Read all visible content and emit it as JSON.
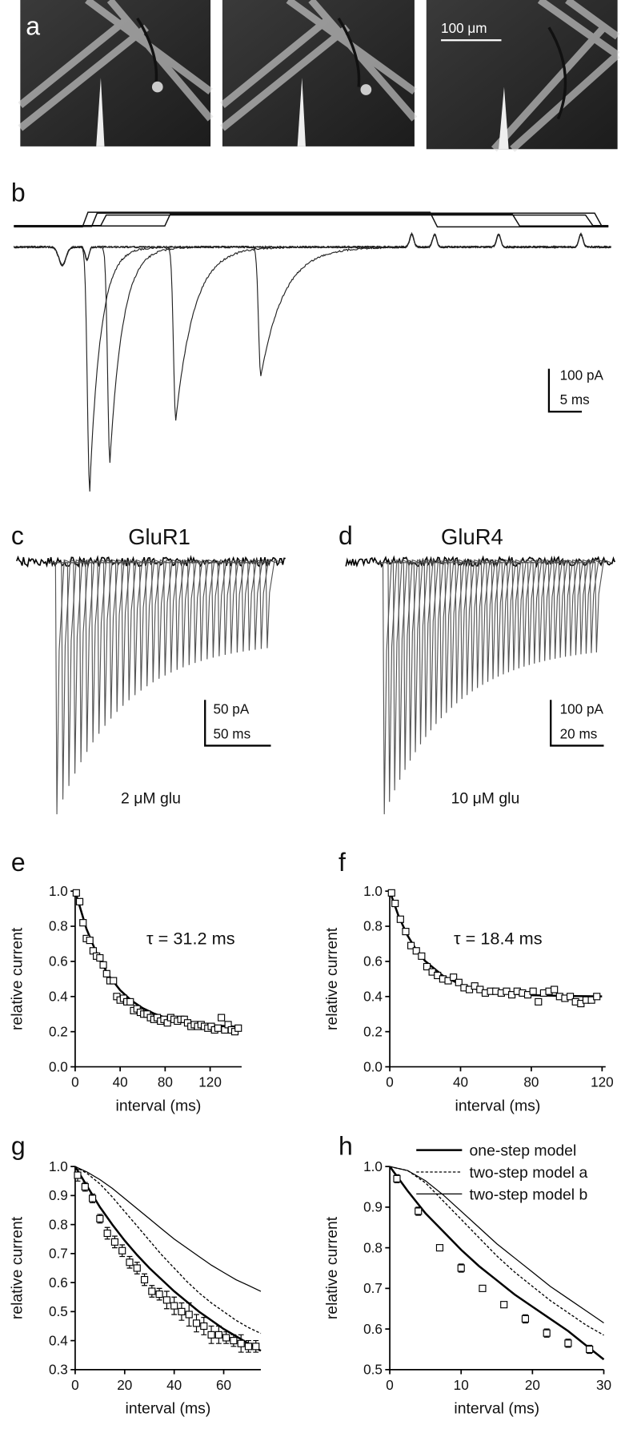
{
  "panels": {
    "a": {
      "label": "a",
      "scale_bar": "100 μm"
    },
    "b": {
      "label": "b",
      "scale_bars": [
        "100 pA",
        "5 ms"
      ]
    },
    "c": {
      "label": "c",
      "title": "GluR1",
      "scale_bars": [
        "50 pA",
        "50 ms"
      ],
      "note": "2 μM glu"
    },
    "d": {
      "label": "d",
      "title": "GluR4",
      "scale_bars": [
        "100 pA",
        "20 ms"
      ],
      "note": "10 μM glu"
    }
  },
  "chart_data": [
    {
      "type": "scatter",
      "label": "e",
      "annotation": "τ = 31.2 ms",
      "xlabel": "interval (ms)",
      "ylabel": "relative current",
      "xlim": [
        0,
        148
      ],
      "xticks": [
        0,
        40,
        80,
        120
      ],
      "ylim": [
        0,
        1
      ],
      "yticks": [
        {
          "value": 0,
          "label": "0.0"
        },
        0.2,
        0.4,
        0.6,
        0.8,
        {
          "value": 1,
          "label": "1.0"
        }
      ],
      "points": {
        "marker": "open-square",
        "x": [
          1,
          4,
          7,
          10,
          13,
          16,
          19,
          22,
          25,
          28,
          31,
          34,
          37,
          40,
          43,
          46,
          49,
          52,
          55,
          58,
          61,
          64,
          67,
          70,
          73,
          76,
          79,
          82,
          85,
          88,
          91,
          94,
          97,
          100,
          103,
          106,
          109,
          112,
          115,
          118,
          121,
          124,
          127,
          130,
          133,
          136,
          139,
          142,
          145
        ],
        "values": [
          0.99,
          0.94,
          0.82,
          0.73,
          0.72,
          0.66,
          0.63,
          0.62,
          0.58,
          0.53,
          0.49,
          0.49,
          0.4,
          0.38,
          0.39,
          0.37,
          0.37,
          0.32,
          0.33,
          0.31,
          0.3,
          0.3,
          0.28,
          0.27,
          0.28,
          0.26,
          0.27,
          0.25,
          0.28,
          0.27,
          0.26,
          0.27,
          0.27,
          0.25,
          0.23,
          0.24,
          0.23,
          0.24,
          0.23,
          0.22,
          0.23,
          0.21,
          0.22,
          0.28,
          0.21,
          0.24,
          0.21,
          0.2,
          0.22
        ]
      },
      "series": [
        {
          "style": "thick",
          "color": "#000000",
          "x": [
            0,
            10,
            20,
            30,
            40,
            50,
            60,
            70,
            80,
            90,
            100,
            120,
            140,
            148
          ],
          "values": [
            1.0,
            0.786,
            0.631,
            0.518,
            0.436,
            0.377,
            0.334,
            0.303,
            0.28,
            0.264,
            0.252,
            0.237,
            0.229,
            0.227
          ]
        }
      ]
    },
    {
      "type": "scatter",
      "label": "f",
      "annotation": "τ = 18.4 ms",
      "xlabel": "interval (ms)",
      "ylabel": "relative current",
      "xlim": [
        0,
        122
      ],
      "xticks": [
        0,
        40,
        80,
        120
      ],
      "ylim": [
        0,
        1
      ],
      "yticks": [
        {
          "value": 0,
          "label": "0.0"
        },
        0.2,
        0.4,
        0.6,
        0.8,
        {
          "value": 1,
          "label": "1.0"
        }
      ],
      "points": {
        "marker": "open-square",
        "x": [
          1,
          3,
          6,
          9,
          12,
          15,
          18,
          21,
          24,
          27,
          30,
          33,
          36,
          39,
          42,
          45,
          48,
          51,
          54,
          57,
          60,
          63,
          66,
          69,
          72,
          75,
          78,
          81,
          84,
          87,
          90,
          93,
          96,
          99,
          102,
          105,
          108,
          111,
          114,
          117
        ],
        "values": [
          0.99,
          0.93,
          0.84,
          0.77,
          0.69,
          0.66,
          0.63,
          0.57,
          0.54,
          0.52,
          0.5,
          0.49,
          0.51,
          0.48,
          0.45,
          0.44,
          0.46,
          0.44,
          0.42,
          0.43,
          0.43,
          0.42,
          0.43,
          0.41,
          0.43,
          0.42,
          0.41,
          0.43,
          0.37,
          0.42,
          0.43,
          0.44,
          0.4,
          0.39,
          0.4,
          0.37,
          0.36,
          0.38,
          0.38,
          0.4
        ]
      },
      "series": [
        {
          "style": "thick",
          "color": "#000000",
          "x": [
            0,
            5,
            10,
            15,
            20,
            30,
            40,
            50,
            60,
            80,
            100,
            120
          ],
          "values": [
            1.0,
            0.857,
            0.748,
            0.665,
            0.602,
            0.518,
            0.468,
            0.44,
            0.423,
            0.408,
            0.403,
            0.401
          ]
        }
      ]
    },
    {
      "type": "scatter",
      "label": "g",
      "xlabel": "interval (ms)",
      "ylabel": "relative current",
      "xlim": [
        0,
        75
      ],
      "xticks": [
        0,
        20,
        40,
        60
      ],
      "ylim": [
        0.3,
        1
      ],
      "yticks": [
        0.3,
        0.4,
        0.5,
        0.6,
        0.7,
        0.8,
        0.9,
        {
          "value": 1,
          "label": "1.0"
        }
      ],
      "points": {
        "marker": "open-square",
        "x": [
          1,
          4,
          7,
          10,
          13,
          16,
          19,
          22,
          25,
          28,
          31,
          34,
          37,
          40,
          43,
          46,
          49,
          52,
          55,
          58,
          61,
          64,
          67,
          70,
          73
        ],
        "values": [
          0.97,
          0.93,
          0.89,
          0.82,
          0.77,
          0.74,
          0.71,
          0.67,
          0.65,
          0.61,
          0.57,
          0.56,
          0.54,
          0.52,
          0.5,
          0.49,
          0.46,
          0.45,
          0.42,
          0.42,
          0.41,
          0.4,
          0.39,
          0.38,
          0.38
        ],
        "errors": [
          0.02,
          0.015,
          0.015,
          0.015,
          0.02,
          0.02,
          0.02,
          0.02,
          0.02,
          0.02,
          0.02,
          0.02,
          0.03,
          0.03,
          0.03,
          0.04,
          0.03,
          0.03,
          0.03,
          0.03,
          0.02,
          0.02,
          0.03,
          0.02,
          0.02
        ]
      },
      "series": [
        {
          "style": "thick",
          "color": "#000000",
          "x": [
            0,
            5,
            10,
            15,
            20,
            25,
            30,
            35,
            40,
            45,
            50,
            55,
            60,
            65,
            70,
            75
          ],
          "values": [
            1.0,
            0.93,
            0.86,
            0.8,
            0.745,
            0.695,
            0.65,
            0.61,
            0.57,
            0.535,
            0.5,
            0.47,
            0.44,
            0.415,
            0.39,
            0.365
          ]
        },
        {
          "style": "dashed",
          "color": "#000000",
          "x": [
            0,
            5,
            10,
            15,
            20,
            25,
            30,
            35,
            40,
            45,
            50,
            55,
            60,
            65,
            70,
            75
          ],
          "values": [
            1.0,
            0.975,
            0.94,
            0.895,
            0.845,
            0.795,
            0.745,
            0.695,
            0.65,
            0.605,
            0.565,
            0.53,
            0.5,
            0.47,
            0.445,
            0.425
          ]
        },
        {
          "style": "thin",
          "color": "#000000",
          "x": [
            0,
            5,
            10,
            15,
            20,
            25,
            30,
            35,
            40,
            45,
            50,
            55,
            60,
            65,
            70,
            75
          ],
          "values": [
            1.0,
            0.98,
            0.955,
            0.925,
            0.89,
            0.855,
            0.82,
            0.785,
            0.75,
            0.72,
            0.69,
            0.66,
            0.635,
            0.61,
            0.59,
            0.57
          ]
        }
      ]
    },
    {
      "type": "scatter",
      "label": "h",
      "xlabel": "interval (ms)",
      "ylabel": "relative current",
      "legend": "top-right",
      "xlim": [
        0,
        30
      ],
      "xticks": [
        0,
        10,
        20,
        30
      ],
      "ylim": [
        0.5,
        1
      ],
      "yticks": [
        0.5,
        0.6,
        0.7,
        0.8,
        0.9,
        {
          "value": 1,
          "label": "1.0"
        }
      ],
      "points": {
        "marker": "open-square",
        "x": [
          1,
          4,
          7,
          10,
          13,
          16,
          19,
          22,
          25,
          28
        ],
        "values": [
          0.97,
          0.89,
          0.8,
          0.75,
          0.7,
          0.66,
          0.625,
          0.59,
          0.565,
          0.55
        ],
        "errors": [
          0.01,
          0.01,
          0.005,
          0.01,
          0.005,
          0.005,
          0.01,
          0.01,
          0.01,
          0.01
        ]
      },
      "series": [
        {
          "name": "one-step model",
          "style": "thick",
          "color": "#000000",
          "x": [
            0,
            2.5,
            5,
            7.5,
            10,
            12.5,
            15,
            17.5,
            20,
            22.5,
            25,
            27.5,
            30
          ],
          "values": [
            1.0,
            0.94,
            0.885,
            0.84,
            0.795,
            0.755,
            0.72,
            0.685,
            0.655,
            0.625,
            0.595,
            0.56,
            0.525
          ]
        },
        {
          "name": "two-step model a",
          "style": "dashed",
          "color": "#000000",
          "x": [
            0,
            2.5,
            5,
            7.5,
            10,
            12.5,
            15,
            17.5,
            20,
            22.5,
            25,
            27.5,
            30
          ],
          "values": [
            1.0,
            0.99,
            0.96,
            0.915,
            0.87,
            0.825,
            0.78,
            0.74,
            0.705,
            0.67,
            0.64,
            0.61,
            0.585
          ]
        },
        {
          "name": "two-step model b",
          "style": "thin",
          "color": "#000000",
          "x": [
            0,
            2.5,
            5,
            7.5,
            10,
            12.5,
            15,
            17.5,
            20,
            22.5,
            25,
            27.5,
            30
          ],
          "values": [
            1.0,
            0.99,
            0.965,
            0.93,
            0.89,
            0.85,
            0.81,
            0.775,
            0.74,
            0.705,
            0.675,
            0.645,
            0.615
          ]
        }
      ]
    }
  ]
}
